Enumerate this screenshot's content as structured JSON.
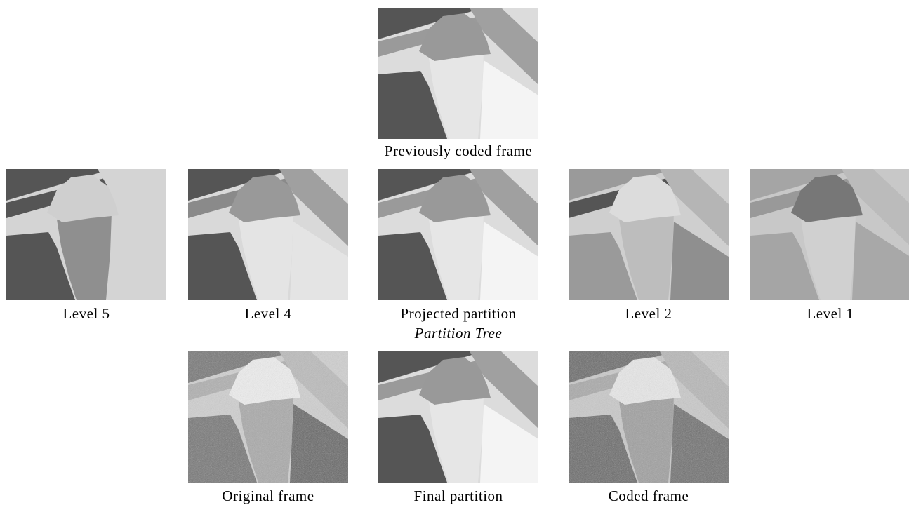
{
  "figure": {
    "panels": [
      {
        "caption": "Previously coded frame"
      },
      {
        "caption": "Level 5"
      },
      {
        "caption": "Level 4"
      },
      {
        "caption": "Projected partition"
      },
      {
        "caption": "Level 2"
      },
      {
        "caption": "Level 1"
      },
      {
        "caption": "Original frame"
      },
      {
        "caption": "Final partition"
      },
      {
        "caption": "Coded frame"
      }
    ],
    "subcaption": "Partition Tree"
  }
}
